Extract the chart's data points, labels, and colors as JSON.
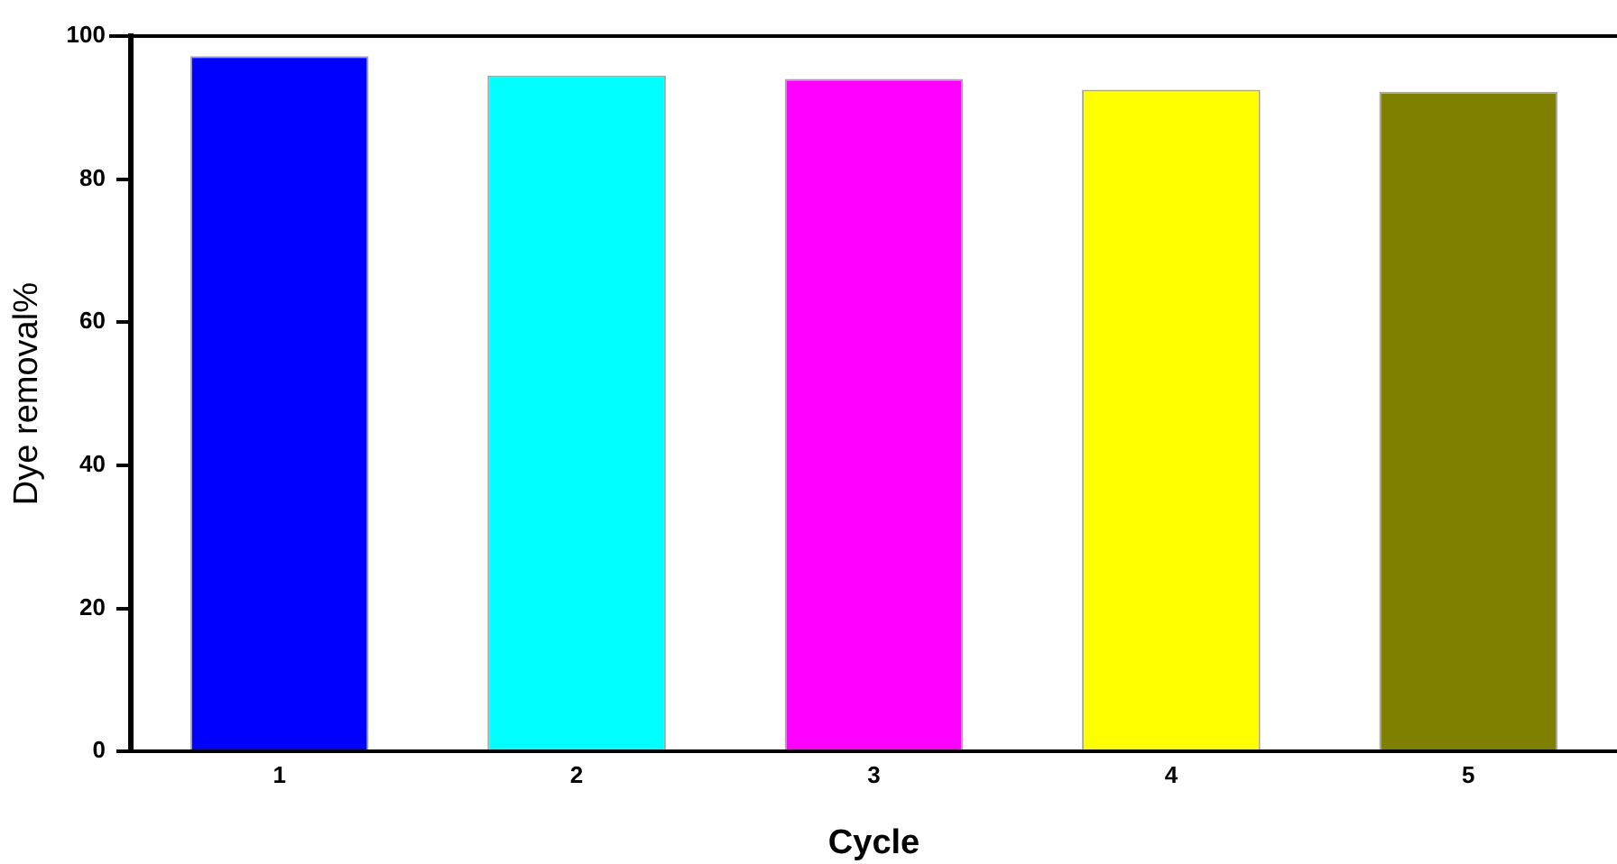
{
  "chart_data": {
    "type": "bar",
    "xlabel": "Cycle",
    "ylabel": "Dye removal%",
    "categories": [
      "1",
      "2",
      "3",
      "4",
      "5"
    ],
    "values": [
      97.2,
      94.5,
      94.0,
      92.5,
      92.2
    ],
    "colors": [
      "#0000ff",
      "#00ffff",
      "#ff00ff",
      "#ffff00",
      "#808000"
    ],
    "ylim": [
      0,
      100
    ],
    "yticks": [
      0,
      20,
      40,
      60,
      80,
      100
    ],
    "grid": false,
    "legend": false
  }
}
